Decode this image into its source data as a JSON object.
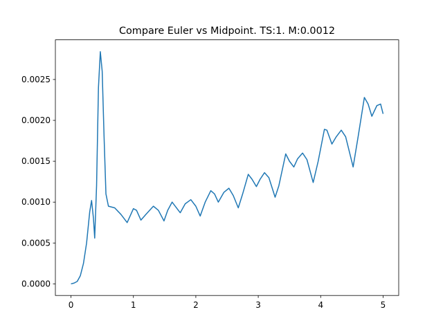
{
  "chart_data": {
    "type": "line",
    "title": "Compare Euler vs Midpoint. TS:1. M:0.0012",
    "x": [
      0,
      0.05,
      0.1,
      0.15,
      0.2,
      0.25,
      0.3,
      0.33,
      0.36,
      0.38,
      0.41,
      0.44,
      0.47,
      0.5,
      0.53,
      0.56,
      0.6,
      0.7,
      0.8,
      0.9,
      1.0,
      1.05,
      1.12,
      1.2,
      1.32,
      1.4,
      1.49,
      1.55,
      1.62,
      1.7,
      1.75,
      1.83,
      1.92,
      2.0,
      2.07,
      2.15,
      2.24,
      2.3,
      2.36,
      2.45,
      2.53,
      2.6,
      2.68,
      2.75,
      2.84,
      2.9,
      2.97,
      3.03,
      3.1,
      3.17,
      3.27,
      3.33,
      3.44,
      3.5,
      3.57,
      3.63,
      3.71,
      3.78,
      3.88,
      3.96,
      4.06,
      4.1,
      4.18,
      4.25,
      4.33,
      4.4,
      4.52,
      4.6,
      4.7,
      4.76,
      4.82,
      4.9,
      4.96,
      5.0
    ],
    "series": [
      {
        "color": "#1f77b4",
        "values": [
          0,
          1e-05,
          3e-05,
          0.0001,
          0.00025,
          0.0005,
          0.00088,
          0.00102,
          0.0008,
          0.00056,
          0.0012,
          0.0024,
          0.00284,
          0.0026,
          0.0018,
          0.0011,
          0.00095,
          0.00093,
          0.00085,
          0.00075,
          0.00092,
          0.0009,
          0.00078,
          0.00085,
          0.00095,
          0.0009,
          0.00077,
          0.0009,
          0.001,
          0.00092,
          0.00087,
          0.00098,
          0.00103,
          0.00095,
          0.00083,
          0.001,
          0.00114,
          0.0011,
          0.001,
          0.00112,
          0.00117,
          0.00108,
          0.00093,
          0.0011,
          0.00134,
          0.00128,
          0.00119,
          0.00128,
          0.00136,
          0.0013,
          0.00106,
          0.0012,
          0.00159,
          0.0015,
          0.00143,
          0.00153,
          0.0016,
          0.00152,
          0.00124,
          0.0015,
          0.00189,
          0.00188,
          0.00171,
          0.0018,
          0.00188,
          0.0018,
          0.00143,
          0.0018,
          0.00228,
          0.0022,
          0.00205,
          0.00218,
          0.0022,
          0.00208
        ]
      }
    ],
    "xlim": [
      -0.25,
      5.25
    ],
    "xticks": [
      0,
      1,
      2,
      3,
      4,
      5
    ],
    "ylim": [
      -0.000142,
      0.002985
    ],
    "yticks": [
      {
        "value": 0,
        "label": "0.0000"
      },
      {
        "value": 0.0005,
        "label": "0.0005"
      },
      {
        "value": 0.001,
        "label": "0.0010"
      },
      {
        "value": 0.0015,
        "label": "0.0015"
      },
      {
        "value": 0.002,
        "label": "0.0020"
      },
      {
        "value": 0.0025,
        "label": "0.0025"
      }
    ]
  }
}
